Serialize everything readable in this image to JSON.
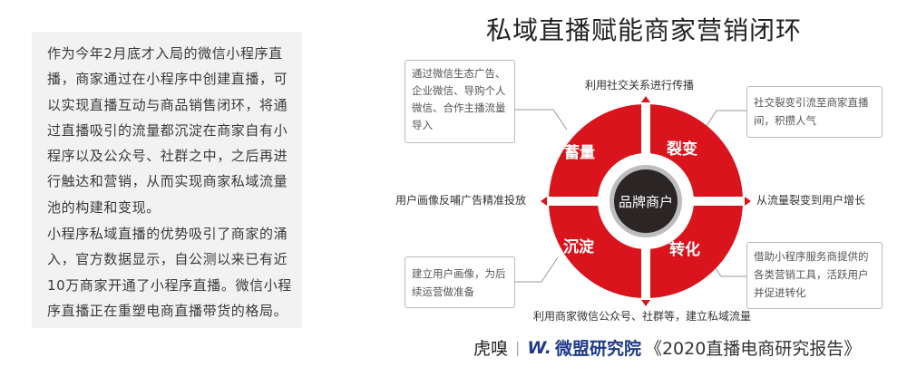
{
  "intro": {
    "paragraph1": "作为今年2月底才入局的微信小程序直播，商家通过在小程序中创建直播，可以实现直播互动与商品销售闭环，将通过直播吸引的流量都沉淀在商家自有小程序以及公众号、社群之中，之后再进行触达和营销，从而实现商家私域流量池的构建和变现。",
    "paragraph2": "小程序私域直播的优势吸引了商家的涌入，官方数据显示，自公测以来已有近10万商家开通了小程序直播。微信小程序直播正在重塑电商直播带货的格局。"
  },
  "diagram": {
    "title": "私域直播赋能商家营销闭环",
    "center": "品牌商户",
    "quadrants": {
      "top_left": "蓄量",
      "top_right": "裂变",
      "bottom_left": "沉淀",
      "bottom_right": "转化"
    },
    "arrows": {
      "top": "利用社交关系进行传播",
      "right": "从流量裂变到用户增长",
      "bottom": "利用商家微信公众号、社群等，建立私域流量",
      "left": "用户画像反哺广告精准投放"
    },
    "notes": {
      "top_left": "通过微信生态广告、企业微信、导购个人微信、合作主播流量导入",
      "top_right": "社交裂变引流至商家直播间，积攒人气",
      "bottom_left": "建立用户画像，为后续运营做准备",
      "bottom_right": "借助小程序服务商提供的各类营销工具，活跃用户并促进转化"
    },
    "colors": {
      "ring": "#d9141c",
      "center": "#2b2526",
      "center_ring": "#b5b5b5"
    }
  },
  "footer": {
    "brand1": "虎嗅",
    "separator": "|",
    "brand2_logo": "W.",
    "brand2": "微盟研究院",
    "report": "《2020直播电商研究报告》"
  }
}
